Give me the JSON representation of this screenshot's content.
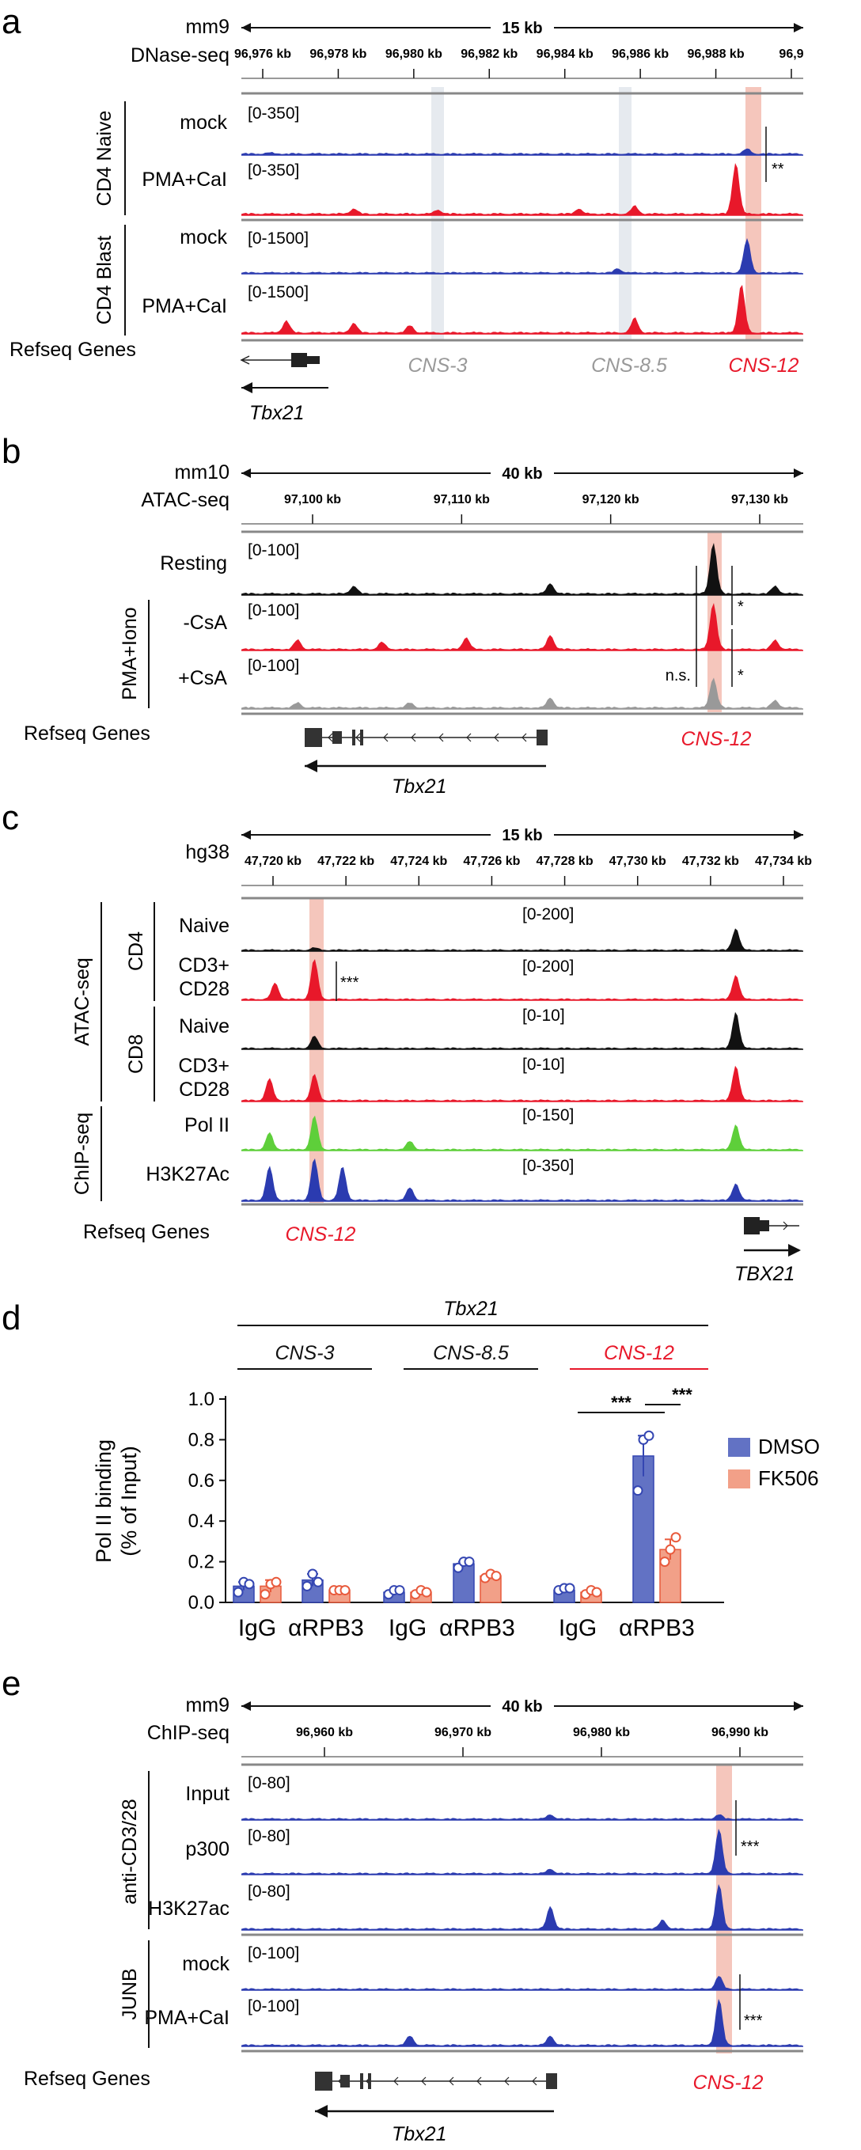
{
  "panels": {
    "a": {
      "label": "a",
      "genome": "mm9",
      "assay": "DNase-seq",
      "span": "15 kb",
      "ticks": [
        "96,976 kb",
        "96,978 kb",
        "96,980 kb",
        "96,982 kb",
        "96,984 kb",
        "96,986 kb",
        "96,988 kb",
        "96,9"
      ],
      "groups": [
        {
          "name": "CD4 Naive",
          "tracks": [
            {
              "name": "mock",
              "range": "[0-350]",
              "color": "#2b3bb0",
              "peaks": [
                [
                  0.05,
                  0.02
                ],
                [
                  0.9,
                  0.1
                ]
              ]
            },
            {
              "name": "PMA+CaI",
              "range": "[0-350]",
              "color": "#e8182a",
              "peaks": [
                [
                  0.2,
                  0.1
                ],
                [
                  0.35,
                  0.08
                ],
                [
                  0.6,
                  0.1
                ],
                [
                  0.7,
                  0.15
                ],
                [
                  0.88,
                  1.0
                ]
              ]
            }
          ]
        },
        {
          "name": "CD4 Blast",
          "tracks": [
            {
              "name": "mock",
              "range": "[0-1500]",
              "color": "#2b3bb0",
              "peaks": [
                [
                  0.67,
                  0.1
                ],
                [
                  0.9,
                  0.8
                ]
              ]
            },
            {
              "name": "PMA+CaI",
              "range": "[0-1500]",
              "color": "#e8182a",
              "peaks": [
                [
                  0.08,
                  0.25
                ],
                [
                  0.2,
                  0.2
                ],
                [
                  0.3,
                  0.15
                ],
                [
                  0.7,
                  0.3
                ],
                [
                  0.89,
                  1.0
                ]
              ]
            }
          ]
        }
      ],
      "significance": "**",
      "regions": [
        {
          "name": "CNS-3",
          "color": "#999999"
        },
        {
          "name": "CNS-8.5",
          "color": "#999999"
        },
        {
          "name": "CNS-12",
          "color": "#e8182a"
        }
      ],
      "refseq_label": "Refseq Genes",
      "gene": "Tbx21"
    },
    "b": {
      "label": "b",
      "genome": "mm10",
      "assay": "ATAC-seq",
      "span": "40 kb",
      "ticks": [
        "97,100 kb",
        "97,110 kb",
        "97,120 kb",
        "97,130 kb"
      ],
      "group": "PMA+Iono",
      "tracks": [
        {
          "name": "Resting",
          "range": "[0-100]",
          "color": "#111111",
          "peaks": [
            [
              0.2,
              0.15
            ],
            [
              0.55,
              0.2
            ],
            [
              0.84,
              1.0
            ],
            [
              0.95,
              0.15
            ]
          ]
        },
        {
          "name": "-CsA",
          "range": "[0-100]",
          "color": "#e8182a",
          "peaks": [
            [
              0.1,
              0.2
            ],
            [
              0.25,
              0.15
            ],
            [
              0.4,
              0.25
            ],
            [
              0.55,
              0.3
            ],
            [
              0.84,
              1.0
            ],
            [
              0.95,
              0.2
            ]
          ]
        },
        {
          "name": "+CsA",
          "range": "[0-100]",
          "color": "#999999",
          "peaks": [
            [
              0.1,
              0.1
            ],
            [
              0.3,
              0.1
            ],
            [
              0.55,
              0.2
            ],
            [
              0.84,
              0.6
            ],
            [
              0.95,
              0.15
            ]
          ]
        }
      ],
      "sig_star": "*",
      "sig_ns": "n.s.",
      "refseq_label": "Refseq Genes",
      "region": "CNS-12",
      "gene": "Tbx21"
    },
    "c": {
      "label": "c",
      "genome": "hg38",
      "span": "15 kb",
      "ticks": [
        "47,720 kb",
        "47,722 kb",
        "47,724 kb",
        "47,726 kb",
        "47,728 kb",
        "47,730 kb",
        "47,732 kb",
        "47,734 kb"
      ],
      "atac_label": "ATAC-seq",
      "chip_label": "ChIP-seq",
      "cd4_label": "CD4",
      "cd8_label": "CD8",
      "tracks": [
        {
          "name": "Naive",
          "range": "[0-200]",
          "color": "#111111",
          "peaks": [
            [
              0.13,
              0.05
            ],
            [
              0.88,
              0.5
            ]
          ]
        },
        {
          "name": "CD3+ CD28",
          "range": "[0-200]",
          "color": "#e8182a",
          "peaks": [
            [
              0.06,
              0.4
            ],
            [
              0.13,
              1.0
            ],
            [
              0.88,
              0.6
            ]
          ]
        },
        {
          "name": "Naive",
          "range": "[0-10]",
          "color": "#111111",
          "peaks": [
            [
              0.13,
              0.3
            ],
            [
              0.88,
              0.9
            ]
          ]
        },
        {
          "name": "CD3+ CD28",
          "range": "[0-10]",
          "color": "#e8182a",
          "peaks": [
            [
              0.05,
              0.5
            ],
            [
              0.13,
              0.6
            ],
            [
              0.88,
              0.8
            ]
          ]
        },
        {
          "name": "Pol II",
          "range": "[0-150]",
          "color": "#5ecf3a",
          "peaks": [
            [
              0.05,
              0.4
            ],
            [
              0.13,
              0.8
            ],
            [
              0.3,
              0.2
            ],
            [
              0.88,
              0.6
            ]
          ]
        },
        {
          "name": "H3K27Ac",
          "range": "[0-350]",
          "color": "#2b3bb0",
          "peaks": [
            [
              0.05,
              0.8
            ],
            [
              0.13,
              1.0
            ],
            [
              0.18,
              0.8
            ],
            [
              0.3,
              0.3
            ],
            [
              0.88,
              0.4
            ]
          ]
        }
      ],
      "significance": "***",
      "refseq_label": "Refseq Genes",
      "region": "CNS-12",
      "gene": "TBX21"
    },
    "d": {
      "label": "d",
      "gene": "Tbx21",
      "regions": [
        "CNS-3",
        "CNS-8.5",
        "CNS-12"
      ],
      "sig1": "***",
      "sig2": "***",
      "legend": [
        {
          "name": "DMSO",
          "color": "#6272c4"
        },
        {
          "name": "FK506",
          "color": "#f2a088"
        }
      ]
    },
    "e": {
      "label": "e",
      "genome": "mm9",
      "assay": "ChIP-seq",
      "span": "40 kb",
      "ticks": [
        "96,960 kb",
        "96,970 kb",
        "96,980 kb",
        "96,990 kb"
      ],
      "group1": "anti-CD3/28",
      "group2": "JUNB",
      "tracks": [
        {
          "name": "Input",
          "range": "[0-80]",
          "color": "#2b3bb0",
          "peaks": [
            [
              0.55,
              0.1
            ],
            [
              0.85,
              0.1
            ]
          ]
        },
        {
          "name": "p300",
          "range": "[0-80]",
          "color": "#2b3bb0",
          "peaks": [
            [
              0.55,
              0.1
            ],
            [
              0.85,
              1.0
            ]
          ]
        },
        {
          "name": "H3K27ac",
          "range": "[0-80]",
          "color": "#2b3bb0",
          "peaks": [
            [
              0.55,
              0.5
            ],
            [
              0.75,
              0.2
            ],
            [
              0.85,
              1.0
            ]
          ]
        },
        {
          "name": "mock",
          "range": "[0-100]",
          "color": "#2b3bb0",
          "peaks": [
            [
              0.85,
              0.3
            ]
          ]
        },
        {
          "name": "PMA+CaI",
          "range": "[0-100]",
          "color": "#2b3bb0",
          "peaks": [
            [
              0.3,
              0.2
            ],
            [
              0.55,
              0.2
            ],
            [
              0.85,
              1.0
            ]
          ]
        }
      ],
      "significance": "***",
      "refseq_label": "Refseq Genes",
      "region": "CNS-12",
      "gene": "Tbx21"
    }
  },
  "chart_data": {
    "type": "bar",
    "title": "Tbx21",
    "ylabel": "Pol II binding (% of Input)",
    "ylim": [
      0,
      1.0
    ],
    "yticks": [
      "0.0",
      "0.2",
      "0.4",
      "0.6",
      "0.8",
      "1.0"
    ],
    "categories": [
      "IgG",
      "αRPB3",
      "IgG",
      "αRPB3",
      "IgG",
      "αRPB3"
    ],
    "groups": [
      "CNS-3",
      "CNS-8.5",
      "CNS-12"
    ],
    "series": [
      {
        "name": "DMSO",
        "values": [
          0.08,
          0.11,
          0.05,
          0.19,
          0.06,
          0.72
        ],
        "errors": [
          0.02,
          0.03,
          0.01,
          0.01,
          0.01,
          0.1
        ]
      },
      {
        "name": "FK506",
        "values": [
          0.08,
          0.06,
          0.05,
          0.13,
          0.05,
          0.26
        ],
        "errors": [
          0.03,
          0.01,
          0.01,
          0.01,
          0.01,
          0.05
        ]
      }
    ],
    "points": {
      "DMSO": [
        [
          0.05,
          0.1,
          0.09
        ],
        [
          0.08,
          0.14,
          0.1
        ],
        [
          0.04,
          0.06,
          0.06
        ],
        [
          0.17,
          0.2,
          0.2
        ],
        [
          0.06,
          0.07,
          0.07
        ],
        [
          0.55,
          0.8,
          0.82
        ]
      ],
      "FK506": [
        [
          0.04,
          0.09,
          0.1
        ],
        [
          0.06,
          0.06,
          0.06
        ],
        [
          0.04,
          0.06,
          0.05
        ],
        [
          0.12,
          0.14,
          0.13
        ],
        [
          0.04,
          0.06,
          0.05
        ],
        [
          0.2,
          0.26,
          0.32
        ]
      ]
    }
  }
}
